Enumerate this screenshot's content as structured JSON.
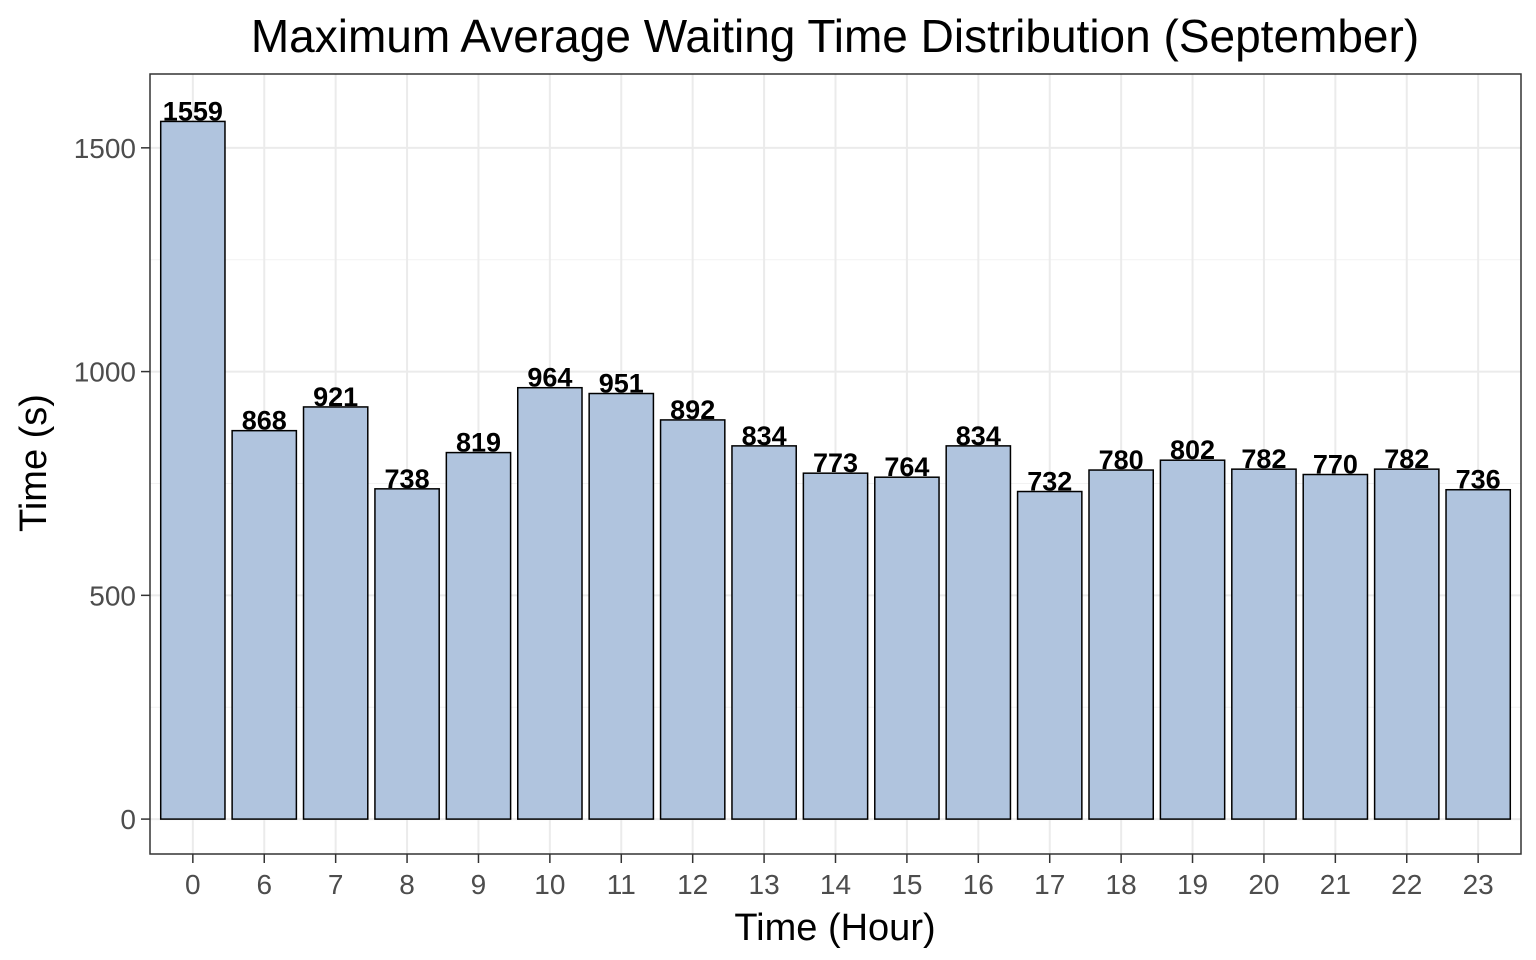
{
  "chart_data": {
    "type": "bar",
    "title": "Maximum Average Waiting Time Distribution (September)",
    "xlabel": "Time (Hour)",
    "ylabel": "Time (s)",
    "categories": [
      "0",
      "6",
      "7",
      "8",
      "9",
      "10",
      "11",
      "12",
      "13",
      "14",
      "15",
      "16",
      "17",
      "18",
      "19",
      "20",
      "21",
      "22",
      "23"
    ],
    "values": [
      1559,
      868,
      921,
      738,
      819,
      964,
      951,
      892,
      834,
      773,
      764,
      834,
      732,
      780,
      802,
      782,
      770,
      782,
      736
    ],
    "data_labels": [
      "1559",
      "868",
      "921",
      "738",
      "819",
      "964",
      "951",
      "892",
      "834",
      "773",
      "764",
      "834",
      "732",
      "780",
      "802",
      "782",
      "770",
      "782",
      "736"
    ],
    "yticks": [
      0,
      500,
      1000,
      1500
    ],
    "ylim": [
      -78,
      1665
    ],
    "grid": true,
    "bar_color": "#b0c4de",
    "bar_edge_color": "#000000"
  }
}
